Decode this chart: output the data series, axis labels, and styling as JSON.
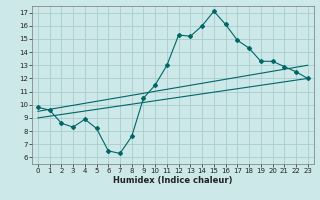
{
  "title": "",
  "xlabel": "Humidex (Indice chaleur)",
  "background_color": "#cce8e8",
  "grid_color": "#aacccc",
  "line_color": "#006666",
  "xlim": [
    -0.5,
    23.5
  ],
  "ylim": [
    5.5,
    17.5
  ],
  "xticks": [
    0,
    1,
    2,
    3,
    4,
    5,
    6,
    7,
    8,
    9,
    10,
    11,
    12,
    13,
    14,
    15,
    16,
    17,
    18,
    19,
    20,
    21,
    22,
    23
  ],
  "yticks": [
    6,
    7,
    8,
    9,
    10,
    11,
    12,
    13,
    14,
    15,
    16,
    17
  ],
  "line1_x": [
    0,
    1,
    2,
    3,
    4,
    5,
    6,
    7,
    8,
    9,
    10,
    11,
    12,
    13,
    14,
    15,
    16,
    17,
    18,
    19,
    20,
    21,
    22,
    23
  ],
  "line1_y": [
    9.8,
    9.6,
    8.6,
    8.3,
    8.9,
    8.2,
    6.5,
    6.3,
    7.6,
    10.5,
    11.5,
    13.0,
    15.3,
    15.2,
    16.0,
    17.1,
    16.1,
    14.9,
    14.3,
    13.3,
    13.3,
    12.9,
    12.5,
    12.0
  ],
  "line2_x": [
    0,
    23
  ],
  "line2_y": [
    9.5,
    13.0
  ],
  "line3_x": [
    0,
    23
  ],
  "line3_y": [
    9.0,
    12.0
  ]
}
